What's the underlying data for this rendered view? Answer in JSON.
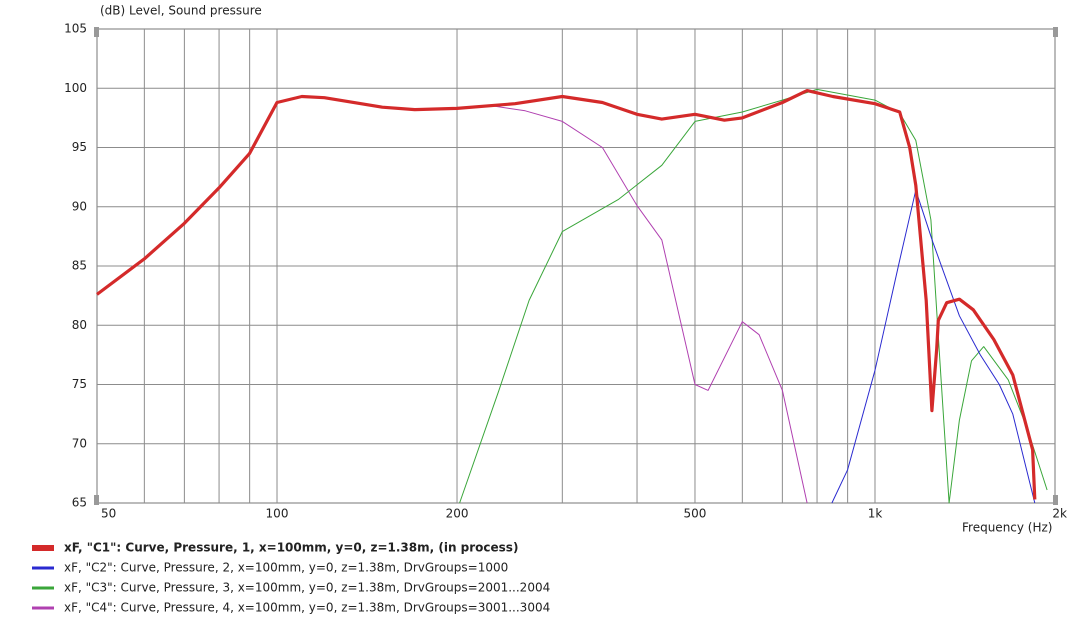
{
  "chart_data": {
    "type": "line",
    "y_label": "(dB)  Level, Sound pressure",
    "x_label": "Frequency  (Hz)",
    "xscale": "log",
    "xlim": [
      50,
      2000
    ],
    "ylim": [
      65,
      105
    ],
    "xticks": [
      50,
      100,
      200,
      500,
      {
        "value": 1000,
        "label": "1k"
      },
      {
        "value": 2000,
        "label": "2k"
      }
    ],
    "xminor": [
      60,
      70,
      80,
      90,
      300,
      400,
      600,
      700,
      800,
      900
    ],
    "yticks": [
      65,
      70,
      75,
      80,
      85,
      90,
      95,
      100,
      105
    ],
    "grid": true,
    "series": [
      {
        "name": "xF, \"C1\": Curve, Pressure, 1, x=100mm, y=0, z=1.38m, (in process)",
        "color": "#d42a2a",
        "x": [
          50,
          60,
          70,
          80,
          90,
          100,
          110,
          120,
          150,
          170,
          200,
          250,
          300,
          350,
          400,
          440,
          500,
          560,
          600,
          700,
          770,
          850,
          1000,
          1100,
          1143,
          1170,
          1218,
          1245,
          1268,
          1276,
          1318,
          1384,
          1460,
          1580,
          1700,
          1835,
          1850
        ],
        "values": [
          82.6,
          85.6,
          88.6,
          91.6,
          94.5,
          98.8,
          99.3,
          99.2,
          98.4,
          98.2,
          98.3,
          98.7,
          99.3,
          98.8,
          97.8,
          97.4,
          97.8,
          97.3,
          97.5,
          98.8,
          99.8,
          99.3,
          98.7,
          98.0,
          95.0,
          91.8,
          82.1,
          72.8,
          78.0,
          80.4,
          81.9,
          82.2,
          81.3,
          78.8,
          75.8,
          69.5,
          65.3
        ]
      },
      {
        "name": "xF, \"C2\": Curve, Pressure, 2, x=100mm, y=0, z=1.38m, DrvGroups=1000",
        "color": "#2a2ad0",
        "x": [
          847,
          900,
          1000,
          1100,
          1170,
          1250,
          1384,
          1500,
          1614,
          1700,
          1850
        ],
        "values": [
          65,
          67.8,
          76.2,
          85.5,
          91.4,
          87.0,
          80.8,
          77.5,
          75.0,
          72.5,
          65
        ]
      },
      {
        "name": "xF, \"C3\": Curve, Pressure, 3, x=100mm, y=0, z=1.38m, DrvGroups=2001...2004",
        "color": "#3aa63a",
        "x": [
          202,
          235,
          264,
          300,
          372,
          440,
          500,
          600,
          700,
          800,
          1000,
          1100,
          1170,
          1240,
          1290,
          1330,
          1384,
          1450,
          1520,
          1670,
          1800,
          1940
        ],
        "values": [
          65,
          74.5,
          82.1,
          87.9,
          90.6,
          93.5,
          97.2,
          98.0,
          99.0,
          99.9,
          99.0,
          97.9,
          95.6,
          88.9,
          75.4,
          65,
          72.0,
          77.0,
          78.2,
          75.4,
          71.2,
          66.1
        ]
      },
      {
        "name": "xF, \"C4\": Curve, Pressure, 4, x=100mm, y=0, z=1.38m, DrvGroups=3001...3004",
        "color": "#b040b0",
        "x": [
          230,
          260,
          300,
          350,
          400,
          440,
          500,
          526,
          600,
          640,
          700,
          770
        ],
        "values": [
          98.5,
          98.1,
          97.2,
          95.0,
          90.1,
          87.2,
          75.0,
          74.5,
          80.3,
          79.2,
          74.5,
          65
        ]
      }
    ]
  }
}
